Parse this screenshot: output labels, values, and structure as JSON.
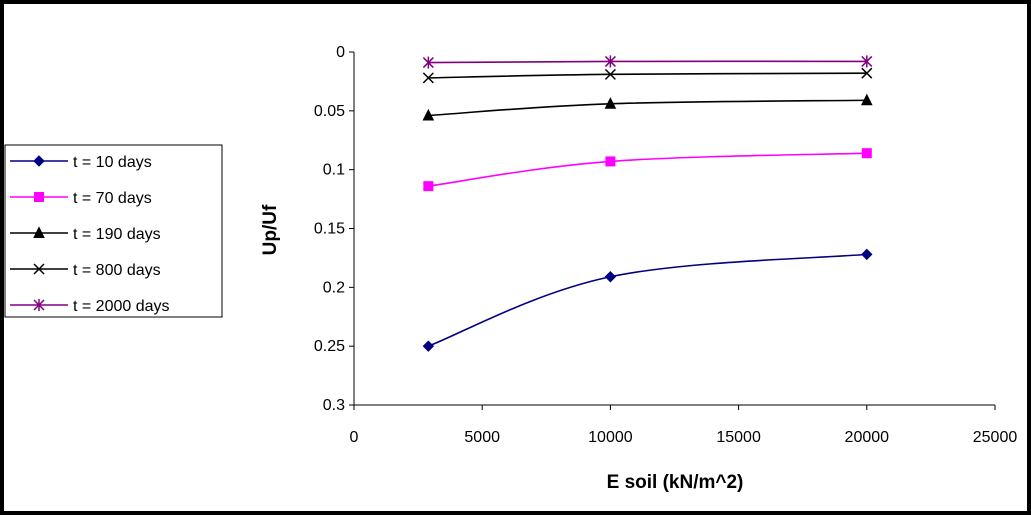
{
  "chart_data": {
    "type": "line",
    "xlabel": "E soil (kN/m^2)",
    "ylabel": "Up/Uf",
    "xlim": [
      0,
      25000
    ],
    "ylim": [
      0,
      0.3
    ],
    "y_axis_reversed": true,
    "x_ticks": [
      0,
      5000,
      10000,
      15000,
      20000,
      25000
    ],
    "x_tick_labels": [
      "0",
      "5000",
      "10000",
      "15000",
      "20000",
      "25000"
    ],
    "y_ticks": [
      0,
      0.05,
      0.1,
      0.15,
      0.2,
      0.25,
      0.3
    ],
    "y_tick_labels": [
      "0",
      "0.05",
      "0.1",
      "0.15",
      "0.2",
      "0.25",
      "0.3"
    ],
    "grid": false,
    "legend_position": "left",
    "smooth_lines": true,
    "x": [
      2900,
      10000,
      20000
    ],
    "series": [
      {
        "name": "t = 10 days",
        "values": [
          0.25,
          0.191,
          0.172
        ],
        "color": "#000080",
        "marker": "diamond"
      },
      {
        "name": "t = 70 days",
        "values": [
          0.114,
          0.093,
          0.086
        ],
        "color": "#FF00FF",
        "marker": "square"
      },
      {
        "name": "t = 190 days",
        "values": [
          0.054,
          0.044,
          0.041
        ],
        "color": "#000000",
        "marker": "triangle"
      },
      {
        "name": "t = 800 days",
        "values": [
          0.022,
          0.019,
          0.018
        ],
        "color": "#000000",
        "marker": "x"
      },
      {
        "name": "t = 2000 days",
        "values": [
          0.009,
          0.008,
          0.008
        ],
        "color": "#800080",
        "marker": "asterisk"
      }
    ]
  }
}
